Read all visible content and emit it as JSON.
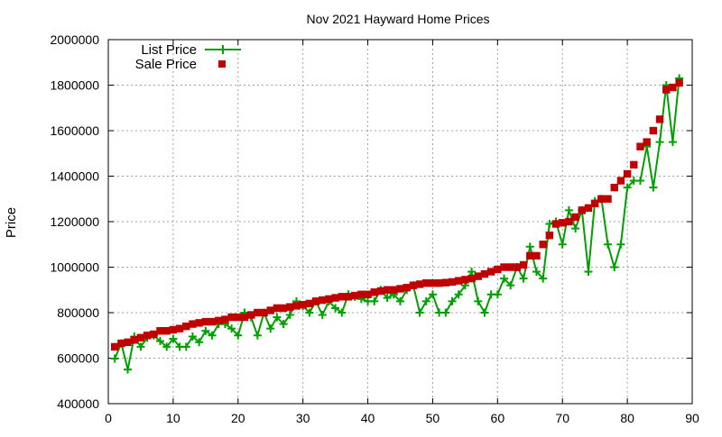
{
  "chart_data": {
    "type": "line",
    "title": "Nov 2021 Hayward Home Prices",
    "xlabel": "",
    "ylabel": "Price",
    "xlim": [
      0,
      90
    ],
    "ylim": [
      400000,
      2000000
    ],
    "x_ticks": [
      0,
      10,
      20,
      30,
      40,
      50,
      60,
      70,
      80,
      90
    ],
    "y_ticks": [
      400000,
      600000,
      800000,
      1000000,
      1200000,
      1400000,
      1600000,
      1800000,
      2000000
    ],
    "x_tick_labels": [
      "0",
      "10",
      "20",
      "30",
      "40",
      "50",
      "60",
      "70",
      "80",
      "90"
    ],
    "y_tick_labels": [
      "400000",
      "600000",
      "800000",
      "1000000",
      "1200000",
      "1400000",
      "1600000",
      "1800000",
      "2000000"
    ],
    "grid": true,
    "legend_position": "top-left",
    "series": [
      {
        "name": "List Price",
        "style": "linespoints",
        "marker": "plus",
        "color": "#00a000",
        "x": [
          1,
          2,
          3,
          4,
          5,
          6,
          7,
          8,
          9,
          10,
          11,
          12,
          13,
          14,
          15,
          16,
          17,
          18,
          19,
          20,
          21,
          22,
          23,
          24,
          25,
          26,
          27,
          28,
          29,
          30,
          31,
          32,
          33,
          34,
          35,
          36,
          37,
          38,
          39,
          40,
          41,
          42,
          43,
          44,
          45,
          46,
          47,
          48,
          49,
          50,
          51,
          52,
          53,
          54,
          55,
          56,
          57,
          58,
          59,
          60,
          61,
          62,
          63,
          64,
          65,
          66,
          67,
          68,
          69,
          70,
          71,
          72,
          73,
          74,
          75,
          76,
          77,
          78,
          79,
          80,
          81,
          82,
          83,
          84,
          85,
          86,
          87,
          88
        ],
        "values": [
          598000,
          665000,
          550000,
          695000,
          650000,
          690000,
          700000,
          675000,
          650000,
          685000,
          650000,
          650000,
          695000,
          670000,
          720000,
          700000,
          750000,
          750000,
          730000,
          700000,
          800000,
          780000,
          700000,
          800000,
          730000,
          780000,
          750000,
          790000,
          850000,
          830000,
          800000,
          850000,
          790000,
          850000,
          820000,
          800000,
          880000,
          870000,
          860000,
          850000,
          850000,
          900000,
          865000,
          880000,
          850000,
          900000,
          920000,
          800000,
          850000,
          880000,
          800000,
          800000,
          850000,
          880000,
          920000,
          980000,
          850000,
          800000,
          880000,
          880000,
          950000,
          920000,
          1000000,
          950000,
          1090000,
          980000,
          950000,
          1190000,
          1200000,
          1100000,
          1250000,
          1170000,
          1250000,
          980000,
          1290000,
          1300000,
          1100000,
          1000000,
          1100000,
          1350000,
          1380000,
          1380000,
          1530000,
          1350000,
          1550000,
          1800000,
          1550000,
          1830000
        ]
      },
      {
        "name": "Sale Price",
        "style": "points",
        "marker": "square",
        "color": "#c00000",
        "x": [
          1,
          2,
          3,
          4,
          5,
          6,
          7,
          8,
          9,
          10,
          11,
          12,
          13,
          14,
          15,
          16,
          17,
          18,
          19,
          20,
          21,
          22,
          23,
          24,
          25,
          26,
          27,
          28,
          29,
          30,
          31,
          32,
          33,
          34,
          35,
          36,
          37,
          38,
          39,
          40,
          41,
          42,
          43,
          44,
          45,
          46,
          47,
          48,
          49,
          50,
          51,
          52,
          53,
          54,
          55,
          56,
          57,
          58,
          59,
          60,
          61,
          62,
          63,
          64,
          65,
          66,
          67,
          68,
          69,
          70,
          71,
          72,
          73,
          74,
          75,
          76,
          77,
          78,
          79,
          80,
          81,
          82,
          83,
          84,
          85,
          86,
          87,
          88
        ],
        "values": [
          650000,
          665000,
          670000,
          680000,
          690000,
          700000,
          705000,
          720000,
          720000,
          725000,
          730000,
          740000,
          750000,
          755000,
          760000,
          760000,
          765000,
          770000,
          780000,
          780000,
          780000,
          790000,
          800000,
          800000,
          810000,
          820000,
          820000,
          825000,
          830000,
          835000,
          840000,
          850000,
          855000,
          860000,
          865000,
          870000,
          870000,
          875000,
          880000,
          880000,
          890000,
          895000,
          900000,
          900000,
          905000,
          910000,
          920000,
          925000,
          930000,
          930000,
          930000,
          932000,
          935000,
          940000,
          945000,
          950000,
          960000,
          970000,
          980000,
          990000,
          1000000,
          1000000,
          1000000,
          1010000,
          1050000,
          1050000,
          1100000,
          1140000,
          1190000,
          1195000,
          1200000,
          1220000,
          1250000,
          1260000,
          1280000,
          1300000,
          1300000,
          1350000,
          1380000,
          1410000,
          1450000,
          1530000,
          1550000,
          1600000,
          1650000,
          1780000,
          1790000,
          1810000
        ]
      }
    ]
  }
}
